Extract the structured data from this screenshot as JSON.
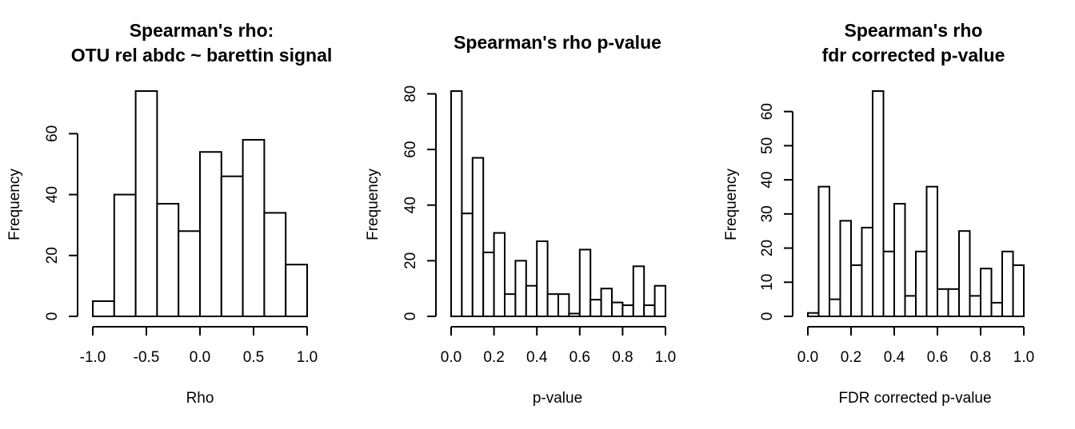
{
  "chart_data": [
    {
      "type": "bar",
      "title": [
        "Spearman's rho:",
        "OTU rel abdc ~ barettin signal"
      ],
      "xlabel": "Rho",
      "ylabel": "Frequency",
      "xlim": [
        -1.0,
        1.0
      ],
      "ylim": [
        0,
        74
      ],
      "xticks": [
        -1.0,
        -0.5,
        0.0,
        0.5,
        1.0
      ],
      "xtick_labels": [
        "-1.0",
        "-0.5",
        "0.0",
        "0.5",
        "1.0"
      ],
      "yticks": [
        0,
        20,
        40,
        60
      ],
      "ytick_labels": [
        "0",
        "20",
        "40",
        "60"
      ],
      "bin_edges": [
        -1.0,
        -0.8,
        -0.6,
        -0.4,
        -0.2,
        0.0,
        0.2,
        0.4,
        0.6,
        0.8,
        1.0
      ],
      "values": [
        5,
        40,
        74,
        37,
        28,
        54,
        46,
        58,
        34,
        17
      ],
      "grid": false
    },
    {
      "type": "bar",
      "title": [
        "Spearman's rho p-value"
      ],
      "xlabel": "p-value",
      "ylabel": "Frequency",
      "xlim": [
        0.0,
        1.0
      ],
      "ylim": [
        0,
        81
      ],
      "xticks": [
        0.0,
        0.2,
        0.4,
        0.6,
        0.8,
        1.0
      ],
      "xtick_labels": [
        "0.0",
        "0.2",
        "0.4",
        "0.6",
        "0.8",
        "1.0"
      ],
      "yticks": [
        0,
        20,
        40,
        60,
        80
      ],
      "ytick_labels": [
        "0",
        "20",
        "40",
        "60",
        "80"
      ],
      "bin_edges": [
        0.0,
        0.05,
        0.1,
        0.15,
        0.2,
        0.25,
        0.3,
        0.35,
        0.4,
        0.45,
        0.5,
        0.55,
        0.6,
        0.65,
        0.7,
        0.75,
        0.8,
        0.85,
        0.9,
        0.95,
        1.0
      ],
      "values": [
        81,
        37,
        57,
        23,
        30,
        8,
        20,
        11,
        27,
        8,
        8,
        1,
        24,
        6,
        10,
        5,
        4,
        18,
        4,
        11
      ],
      "grid": false
    },
    {
      "type": "bar",
      "title": [
        "Spearman's rho",
        "fdr corrected p-value"
      ],
      "xlabel": "FDR corrected p-value",
      "ylabel": "Frequency",
      "xlim": [
        0.0,
        1.0
      ],
      "ylim": [
        0,
        66
      ],
      "xticks": [
        0.0,
        0.2,
        0.4,
        0.6,
        0.8,
        1.0
      ],
      "xtick_labels": [
        "0.0",
        "0.2",
        "0.4",
        "0.6",
        "0.8",
        "1.0"
      ],
      "yticks": [
        0,
        10,
        20,
        30,
        40,
        50,
        60
      ],
      "ytick_labels": [
        "0",
        "10",
        "20",
        "30",
        "40",
        "50",
        "60"
      ],
      "bin_edges": [
        0.0,
        0.05,
        0.1,
        0.15,
        0.2,
        0.25,
        0.3,
        0.35,
        0.4,
        0.45,
        0.5,
        0.55,
        0.6,
        0.65,
        0.7,
        0.75,
        0.8,
        0.85,
        0.9,
        0.95,
        1.0
      ],
      "values": [
        1,
        38,
        5,
        28,
        15,
        26,
        66,
        19,
        33,
        6,
        19,
        38,
        8,
        8,
        25,
        6,
        14,
        4,
        19,
        15
      ],
      "grid": false
    }
  ]
}
